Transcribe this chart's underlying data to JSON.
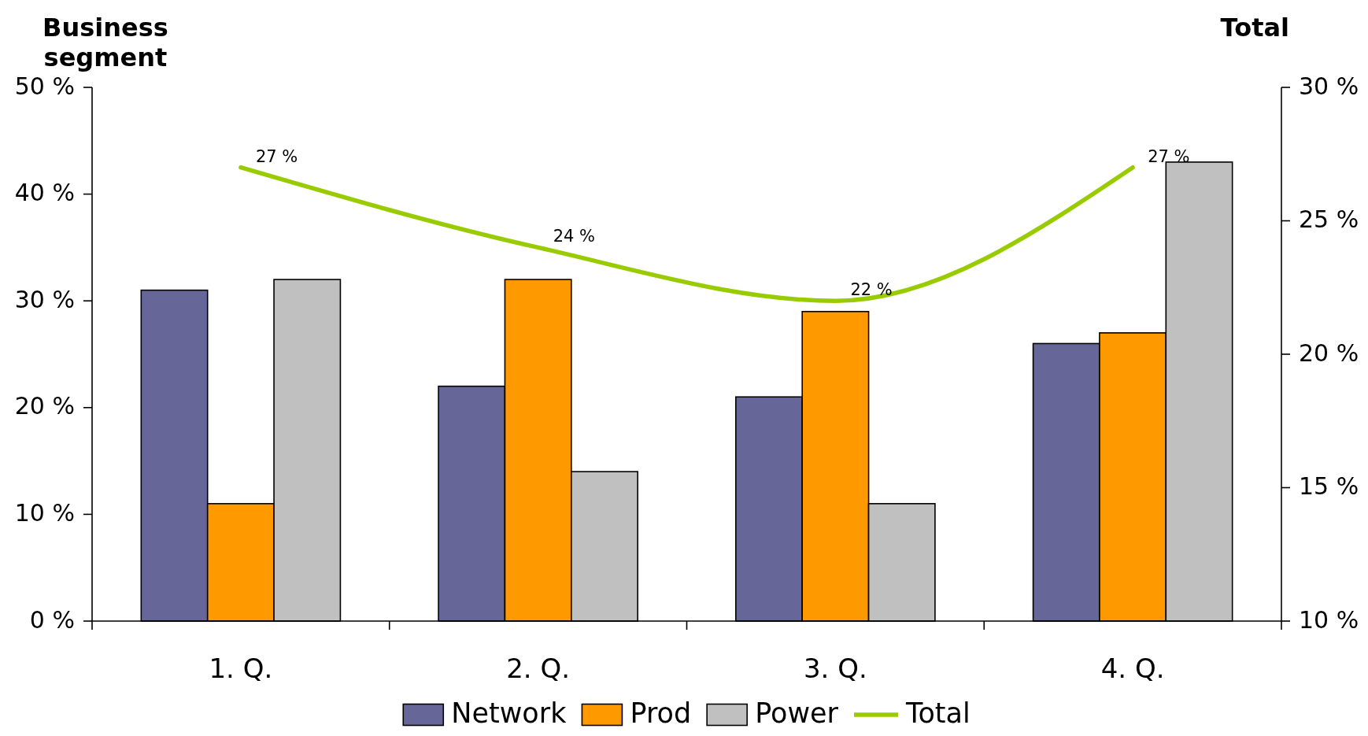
{
  "chart_data": {
    "type": "bar",
    "ylabel": "Business segment",
    "y2label": "Total",
    "categories": [
      "1. Q.",
      "2. Q.",
      "3. Q.",
      "4. Q."
    ],
    "series": [
      {
        "name": "Network",
        "color": "#666699",
        "values": [
          31,
          22,
          21,
          26
        ]
      },
      {
        "name": "Prod",
        "color": "#ff9900",
        "values": [
          11,
          32,
          29,
          27
        ]
      },
      {
        "name": "Power",
        "color": "#c0c0c0",
        "values": [
          32,
          14,
          11,
          43
        ]
      },
      {
        "name": "Total",
        "type": "line",
        "axis": "y2",
        "color": "#99cc00",
        "values": [
          27,
          24,
          22,
          27
        ],
        "value_labels": [
          "27 %",
          "24 %",
          "22 %",
          "27 %"
        ]
      }
    ],
    "ylim": [
      0,
      50
    ],
    "yticks": [
      {
        "value": 0,
        "label": "0 %"
      },
      {
        "value": 10,
        "label": "10 %"
      },
      {
        "value": 20,
        "label": "20 %"
      },
      {
        "value": 30,
        "label": "30 %"
      },
      {
        "value": 40,
        "label": "40 %"
      },
      {
        "value": 50,
        "label": "50 %"
      }
    ],
    "y2lim": [
      10,
      30
    ],
    "y2ticks": [
      {
        "value": 10,
        "label": "10 %"
      },
      {
        "value": 15,
        "label": "15 %"
      },
      {
        "value": 20,
        "label": "20 %"
      },
      {
        "value": 25,
        "label": "25 %"
      },
      {
        "value": 30,
        "label": "30 %"
      }
    ],
    "legend": "bottom"
  }
}
